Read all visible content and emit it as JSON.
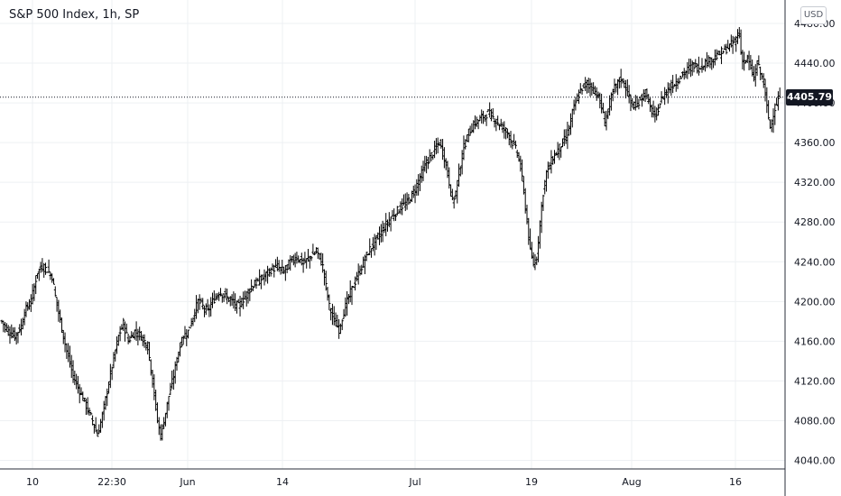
{
  "title": "S&P 500 Index, 1h, SP",
  "currency": "USD",
  "chart_data": {
    "type": "ohlc",
    "last_price": "4405.79",
    "ylim": [
      4030,
      4470
    ],
    "y_ticks": [
      "4040.00",
      "4080.00",
      "4120.00",
      "4160.00",
      "4200.00",
      "4240.00",
      "4280.00",
      "4320.00",
      "4360.00",
      "4400.00",
      "4440.00",
      "4480.00"
    ],
    "x_ticks": [
      "10",
      "22:30",
      "Jun",
      "14",
      "Jul",
      "19",
      "Aug",
      "16"
    ],
    "grid": true,
    "series_anchors": [
      [
        0,
        4180
      ],
      [
        4,
        4170
      ],
      [
        8,
        4165
      ],
      [
        12,
        4175
      ],
      [
        14,
        4190
      ],
      [
        18,
        4200
      ],
      [
        20,
        4215
      ],
      [
        22,
        4230
      ],
      [
        25,
        4235
      ],
      [
        28,
        4232
      ],
      [
        31,
        4225
      ],
      [
        33,
        4205
      ],
      [
        36,
        4180
      ],
      [
        40,
        4150
      ],
      [
        44,
        4125
      ],
      [
        48,
        4110
      ],
      [
        52,
        4095
      ],
      [
        56,
        4080
      ],
      [
        59,
        4065
      ],
      [
        62,
        4085
      ],
      [
        65,
        4110
      ],
      [
        68,
        4135
      ],
      [
        72,
        4165
      ],
      [
        75,
        4178
      ],
      [
        78,
        4160
      ],
      [
        82,
        4170
      ],
      [
        86,
        4165
      ],
      [
        90,
        4155
      ],
      [
        93,
        4120
      ],
      [
        96,
        4080
      ],
      [
        98,
        4065
      ],
      [
        100,
        4080
      ],
      [
        103,
        4105
      ],
      [
        106,
        4125
      ],
      [
        109,
        4150
      ],
      [
        112,
        4165
      ],
      [
        115,
        4170
      ],
      [
        118,
        4185
      ],
      [
        121,
        4200
      ],
      [
        124,
        4195
      ],
      [
        127,
        4190
      ],
      [
        130,
        4200
      ],
      [
        134,
        4210
      ],
      [
        138,
        4205
      ],
      [
        142,
        4200
      ],
      [
        146,
        4195
      ],
      [
        150,
        4205
      ],
      [
        154,
        4215
      ],
      [
        158,
        4220
      ],
      [
        162,
        4225
      ],
      [
        166,
        4232
      ],
      [
        170,
        4235
      ],
      [
        174,
        4230
      ],
      [
        178,
        4240
      ],
      [
        182,
        4245
      ],
      [
        186,
        4238
      ],
      [
        190,
        4245
      ],
      [
        194,
        4250
      ],
      [
        196,
        4245
      ],
      [
        198,
        4235
      ],
      [
        200,
        4215
      ],
      [
        202,
        4195
      ],
      [
        205,
        4180
      ],
      [
        208,
        4172
      ],
      [
        211,
        4190
      ],
      [
        214,
        4205
      ],
      [
        218,
        4220
      ],
      [
        222,
        4235
      ],
      [
        226,
        4250
      ],
      [
        230,
        4260
      ],
      [
        234,
        4270
      ],
      [
        238,
        4280
      ],
      [
        242,
        4288
      ],
      [
        246,
        4295
      ],
      [
        250,
        4300
      ],
      [
        254,
        4310
      ],
      [
        258,
        4325
      ],
      [
        262,
        4340
      ],
      [
        266,
        4350
      ],
      [
        270,
        4360
      ],
      [
        273,
        4345
      ],
      [
        276,
        4320
      ],
      [
        278,
        4300
      ],
      [
        280,
        4310
      ],
      [
        282,
        4330
      ],
      [
        285,
        4355
      ],
      [
        288,
        4370
      ],
      [
        292,
        4380
      ],
      [
        296,
        4385
      ],
      [
        300,
        4390
      ],
      [
        303,
        4385
      ],
      [
        306,
        4380
      ],
      [
        309,
        4375
      ],
      [
        312,
        4370
      ],
      [
        315,
        4360
      ],
      [
        318,
        4350
      ],
      [
        320,
        4335
      ],
      [
        322,
        4310
      ],
      [
        324,
        4280
      ],
      [
        326,
        4250
      ],
      [
        328,
        4238
      ],
      [
        330,
        4245
      ],
      [
        332,
        4280
      ],
      [
        334,
        4310
      ],
      [
        336,
        4330
      ],
      [
        340,
        4345
      ],
      [
        344,
        4355
      ],
      [
        348,
        4365
      ],
      [
        350,
        4375
      ],
      [
        352,
        4390
      ],
      [
        355,
        4405
      ],
      [
        358,
        4415
      ],
      [
        361,
        4420
      ],
      [
        364,
        4415
      ],
      [
        367,
        4410
      ],
      [
        370,
        4395
      ],
      [
        372,
        4380
      ],
      [
        375,
        4400
      ],
      [
        378,
        4415
      ],
      [
        382,
        4425
      ],
      [
        385,
        4415
      ],
      [
        388,
        4400
      ],
      [
        391,
        4395
      ],
      [
        394,
        4405
      ],
      [
        397,
        4410
      ],
      [
        400,
        4395
      ],
      [
        403,
        4385
      ],
      [
        406,
        4400
      ],
      [
        409,
        4410
      ],
      [
        412,
        4415
      ],
      [
        415,
        4420
      ],
      [
        418,
        4425
      ],
      [
        421,
        4430
      ],
      [
        424,
        4435
      ],
      [
        427,
        4438
      ],
      [
        430,
        4435
      ],
      [
        433,
        4440
      ],
      [
        436,
        4442
      ],
      [
        439,
        4445
      ],
      [
        442,
        4448
      ],
      [
        445,
        4452
      ],
      [
        448,
        4456
      ],
      [
        451,
        4460
      ],
      [
        453,
        4465
      ],
      [
        455,
        4470
      ],
      [
        456,
        4450
      ],
      [
        458,
        4440
      ],
      [
        460,
        4445
      ],
      [
        462,
        4435
      ],
      [
        464,
        4425
      ],
      [
        466,
        4440
      ],
      [
        468,
        4430
      ],
      [
        470,
        4420
      ],
      [
        472,
        4395
      ],
      [
        474,
        4375
      ],
      [
        476,
        4390
      ],
      [
        478,
        4400
      ],
      [
        480,
        4406
      ]
    ]
  }
}
